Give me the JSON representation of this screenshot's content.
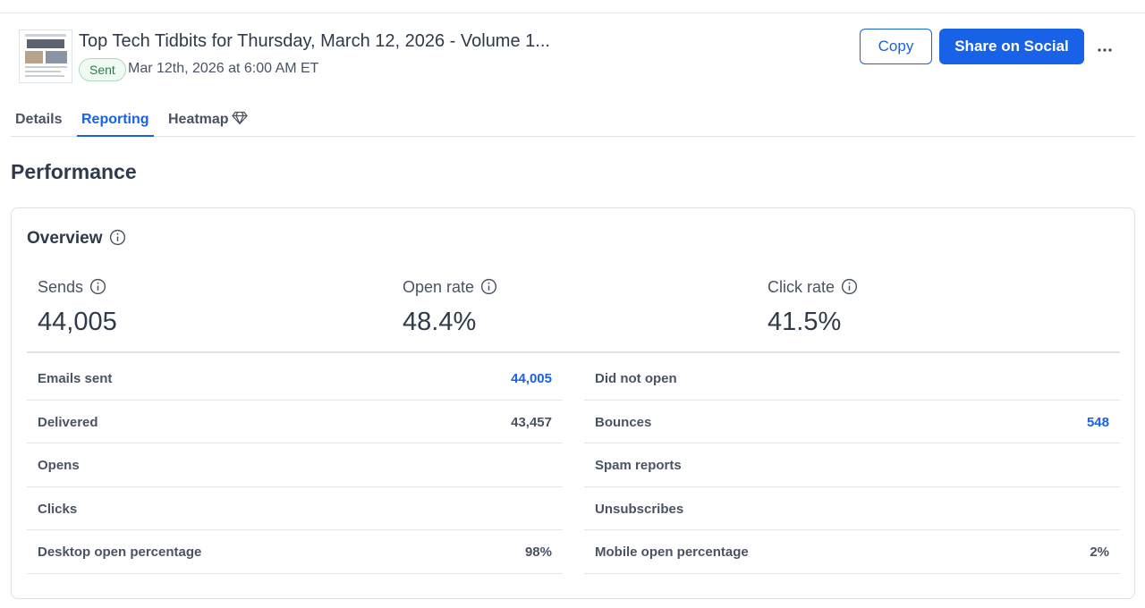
{
  "campaign": {
    "title": "Top Tech Tidbits for Thursday, March 12, 2026 - Volume 1...",
    "status": "Sent",
    "sent_date": "Mar 12th, 2026 at 6:00 AM ET"
  },
  "actions": {
    "copy_label": "Copy",
    "share_label": "Share on Social",
    "more_label": "•••"
  },
  "tabs": [
    {
      "label": "Details",
      "active": false
    },
    {
      "label": "Reporting",
      "active": true
    },
    {
      "label": "Heatmap",
      "active": false,
      "icon": "diamond-icon"
    }
  ],
  "performance": {
    "title": "Performance",
    "overview_title": "Overview",
    "metrics": [
      {
        "label": "Sends",
        "value": "44,005"
      },
      {
        "label": "Open rate",
        "value": "48.4%"
      },
      {
        "label": "Click rate",
        "value": "41.5%"
      }
    ],
    "left_rows": [
      {
        "label": "Emails sent",
        "value": "44,005",
        "link": true
      },
      {
        "label": "Delivered",
        "value": "43,457",
        "link": false
      },
      {
        "label": "Opens",
        "value": "",
        "link": false
      },
      {
        "label": "Clicks",
        "value": "",
        "link": false
      },
      {
        "label": "Desktop open percentage",
        "value": "98%",
        "link": false
      }
    ],
    "right_rows": [
      {
        "label": "Did not open",
        "value": "",
        "link": false
      },
      {
        "label": "Bounces",
        "value": "548",
        "link": true
      },
      {
        "label": "Spam reports",
        "value": "",
        "link": false
      },
      {
        "label": "Unsubscribes",
        "value": "",
        "link": false
      },
      {
        "label": "Mobile open percentage",
        "value": "2%",
        "link": false
      }
    ]
  },
  "colors": {
    "accent": "#1762e6",
    "sent_badge": "#eefaf2"
  }
}
